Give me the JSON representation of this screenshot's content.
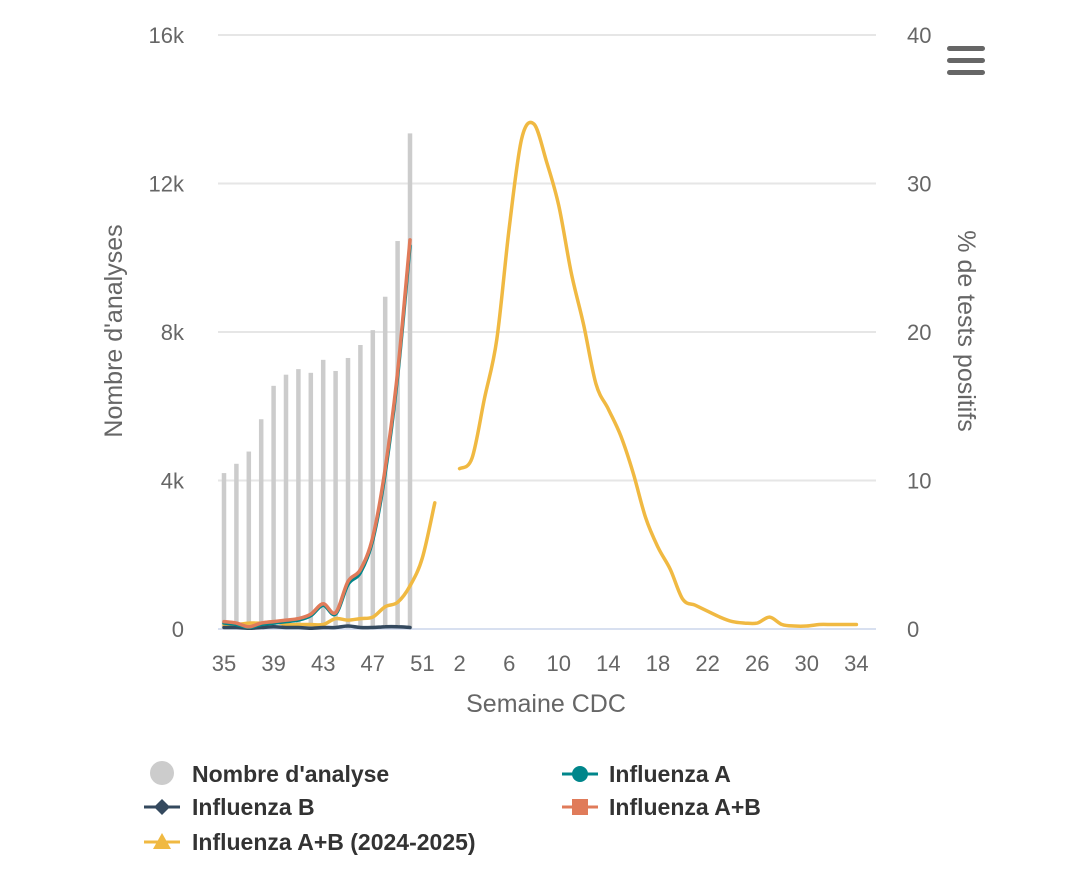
{
  "menu": {
    "icon": "hamburger-menu-icon"
  },
  "chart_data": {
    "type": "bar+line",
    "xlabel": "Semaine CDC",
    "ylabel_left": "Nombre d'analyses",
    "ylabel_right": "% de tests positifs",
    "ylim_left": [
      0,
      16000
    ],
    "ylim_right": [
      0,
      40
    ],
    "y_ticks_left": [
      "0",
      "4k",
      "8k",
      "12k",
      "16k"
    ],
    "y_ticks_right": [
      "0",
      "10",
      "20",
      "30",
      "40"
    ],
    "x_tick_labels": [
      "35",
      "39",
      "43",
      "47",
      "51",
      "2",
      "6",
      "10",
      "14",
      "18",
      "22",
      "26",
      "30",
      "34"
    ],
    "weeks": [
      35,
      36,
      37,
      38,
      39,
      40,
      41,
      42,
      43,
      44,
      45,
      46,
      47,
      48,
      49,
      50,
      51,
      52,
      1,
      2,
      3,
      4,
      5,
      6,
      7,
      8,
      9,
      10,
      11,
      12,
      13,
      14,
      15,
      16,
      17,
      18,
      19,
      20,
      21,
      22,
      23,
      24,
      25,
      26,
      27,
      28,
      29,
      30,
      31,
      32,
      33,
      34
    ],
    "grid": true,
    "legend_position": "bottom",
    "series": [
      {
        "name": "Nombre d'analyse",
        "type": "column",
        "axis": "left",
        "color": "#cccccc",
        "marker": "circle",
        "values": [
          4200,
          4450,
          4780,
          5650,
          6550,
          6850,
          7000,
          6900,
          7250,
          6950,
          7300,
          7650,
          8050,
          8950,
          10450,
          13350
        ]
      },
      {
        "name": "Influenza A",
        "type": "line",
        "axis": "right",
        "color": "#00868b",
        "marker": "circle",
        "values": [
          0.4,
          0.3,
          0.1,
          0.3,
          0.4,
          0.5,
          0.6,
          0.9,
          1.6,
          1.0,
          3.0,
          3.8,
          6.0,
          10.5,
          17.0,
          25.8
        ]
      },
      {
        "name": "Influenza B",
        "type": "line",
        "axis": "right",
        "color": "#34495e",
        "marker": "diamond",
        "values": [
          0.1,
          0.1,
          0.05,
          0.1,
          0.15,
          0.1,
          0.1,
          0.05,
          0.1,
          0.1,
          0.2,
          0.1,
          0.1,
          0.15,
          0.15,
          0.1
        ]
      },
      {
        "name": "Influenza A+B",
        "type": "line",
        "axis": "right",
        "color": "#e07b5a",
        "marker": "square",
        "values": [
          0.5,
          0.4,
          0.15,
          0.4,
          0.5,
          0.6,
          0.7,
          1.0,
          1.7,
          1.1,
          3.2,
          4.0,
          6.2,
          10.8,
          17.3,
          26.2
        ]
      },
      {
        "name": "Influenza A+B (2024-2025)",
        "type": "line",
        "axis": "right",
        "color": "#f0b942",
        "marker": "triangle",
        "values": [
          0.3,
          0.3,
          0.4,
          0.4,
          0.5,
          0.3,
          0.3,
          0.3,
          0.3,
          0.7,
          0.6,
          0.7,
          0.8,
          1.5,
          1.8,
          2.9,
          4.8,
          8.5,
          null,
          10.8,
          11.5,
          15.5,
          19.5,
          27.0,
          33.0,
          34.0,
          31.5,
          28.5,
          24.0,
          20.5,
          16.5,
          14.8,
          13.0,
          10.5,
          7.5,
          5.5,
          4.0,
          2.0,
          1.6,
          1.2,
          0.8,
          0.5,
          0.4,
          0.4,
          0.8,
          0.3,
          0.2,
          0.2,
          0.3,
          0.3,
          0.3,
          0.3
        ]
      }
    ]
  }
}
